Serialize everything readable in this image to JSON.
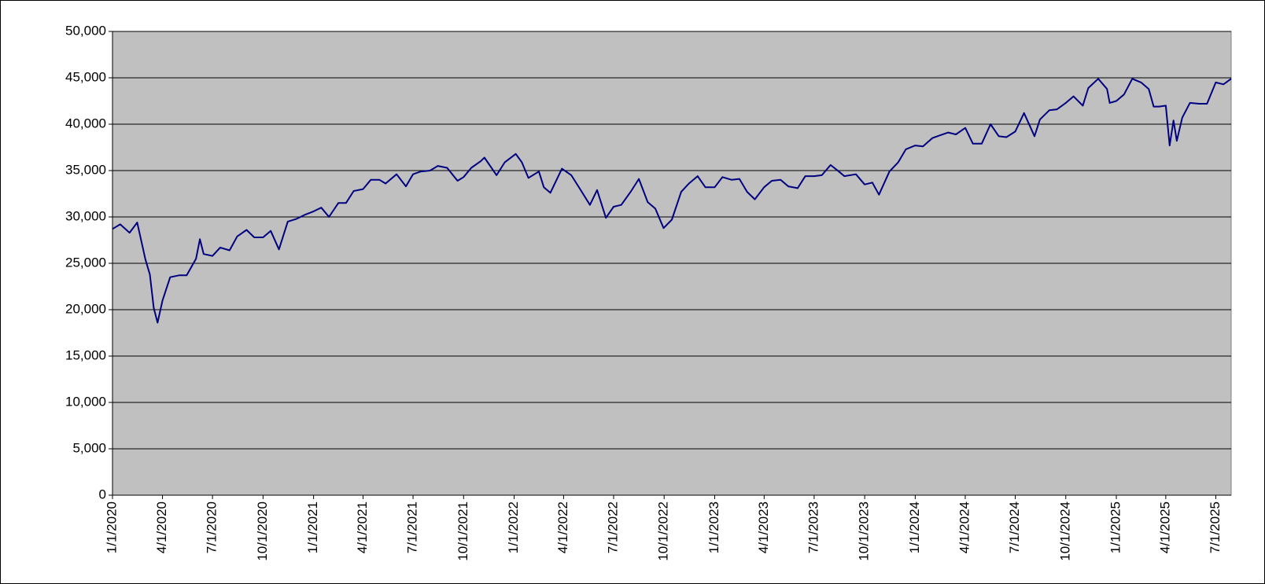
{
  "chart_data": {
    "type": "line",
    "x": [
      "1/1/2020",
      "1/15/2020",
      "2/1/2020",
      "2/15/2020",
      "3/1/2020",
      "3/9/2020",
      "3/16/2020",
      "3/23/2020",
      "4/1/2020",
      "4/15/2020",
      "5/1/2020",
      "5/15/2020",
      "6/1/2020",
      "6/8/2020",
      "6/15/2020",
      "7/1/2020",
      "7/15/2020",
      "8/1/2020",
      "8/15/2020",
      "9/1/2020",
      "9/15/2020",
      "10/1/2020",
      "10/15/2020",
      "10/30/2020",
      "11/15/2020",
      "12/1/2020",
      "12/15/2020",
      "1/1/2021",
      "1/15/2021",
      "1/29/2021",
      "2/15/2021",
      "3/1/2021",
      "3/15/2021",
      "4/1/2021",
      "4/15/2021",
      "5/1/2021",
      "5/12/2021",
      "6/1/2021",
      "6/18/2021",
      "7/1/2021",
      "7/15/2021",
      "8/1/2021",
      "8/15/2021",
      "9/1/2021",
      "9/20/2021",
      "10/1/2021",
      "10/15/2021",
      "11/1/2021",
      "11/8/2021",
      "11/30/2021",
      "12/15/2021",
      "1/4/2022",
      "1/15/2022",
      "1/27/2022",
      "2/15/2022",
      "2/24/2022",
      "3/8/2022",
      "3/29/2022",
      "4/15/2022",
      "5/1/2022",
      "5/19/2022",
      "6/1/2022",
      "6/17/2022",
      "7/1/2022",
      "7/15/2022",
      "8/1/2022",
      "8/16/2022",
      "9/1/2022",
      "9/15/2022",
      "9/30/2022",
      "10/15/2022",
      "11/1/2022",
      "11/15/2022",
      "12/1/2022",
      "12/15/2022",
      "1/1/2023",
      "1/15/2023",
      "2/1/2023",
      "2/15/2023",
      "3/1/2023",
      "3/15/2023",
      "4/1/2023",
      "4/15/2023",
      "5/1/2023",
      "5/15/2023",
      "6/1/2023",
      "6/15/2023",
      "7/1/2023",
      "7/15/2023",
      "7/31/2023",
      "8/15/2023",
      "8/25/2023",
      "9/15/2023",
      "10/1/2023",
      "10/15/2023",
      "10/27/2023",
      "11/15/2023",
      "12/1/2023",
      "12/15/2023",
      "1/1/2024",
      "1/15/2024",
      "2/1/2024",
      "2/15/2024",
      "3/1/2024",
      "3/15/2024",
      "4/1/2024",
      "4/15/2024",
      "5/1/2024",
      "5/17/2024",
      "6/1/2024",
      "6/15/2024",
      "7/1/2024",
      "7/17/2024",
      "8/5/2024",
      "8/15/2024",
      "9/1/2024",
      "9/15/2024",
      "10/1/2024",
      "10/15/2024",
      "11/1/2024",
      "11/11/2024",
      "11/29/2024",
      "12/15/2024",
      "12/20/2024",
      "1/1/2025",
      "1/15/2025",
      "1/30/2025",
      "2/15/2025",
      "3/1/2025",
      "3/10/2025",
      "3/20/2025",
      "4/1/2025",
      "4/8/2025",
      "4/15/2025",
      "4/21/2025",
      "5/1/2025",
      "5/15/2025",
      "6/1/2025",
      "6/15/2025",
      "7/1/2025",
      "7/15/2025",
      "7/29/2025"
    ],
    "series": [
      {
        "color": "#000080",
        "values": [
          28700,
          29200,
          28300,
          29400,
          25400,
          23800,
          20200,
          18600,
          21000,
          23500,
          23700,
          23700,
          25500,
          27600,
          26000,
          25800,
          26700,
          26400,
          27900,
          28600,
          27800,
          27800,
          28500,
          26500,
          29500,
          29800,
          30200,
          30600,
          31000,
          30000,
          31500,
          31500,
          32800,
          33000,
          34000,
          34000,
          33600,
          34600,
          33300,
          34600,
          34900,
          35000,
          35500,
          35300,
          33900,
          34300,
          35300,
          36000,
          36400,
          34500,
          35900,
          36800,
          35900,
          34200,
          34900,
          33200,
          32600,
          35200,
          34500,
          33000,
          31300,
          32900,
          29900,
          31100,
          31300,
          32700,
          34100,
          31600,
          30900,
          28800,
          29700,
          32700,
          33600,
          34400,
          33200,
          33200,
          34300,
          34000,
          34100,
          32700,
          31900,
          33200,
          33900,
          34000,
          33300,
          33100,
          34400,
          34400,
          34500,
          35600,
          34900,
          34400,
          34600,
          33500,
          33700,
          32400,
          34900,
          35900,
          37300,
          37700,
          37600,
          38500,
          38800,
          39100,
          38900,
          39600,
          37900,
          37900,
          40000,
          38700,
          38600,
          39200,
          41200,
          38700,
          40500,
          41500,
          41600,
          42300,
          43000,
          42000,
          43900,
          44900,
          43800,
          42300,
          42500,
          43200,
          44900,
          44500,
          43800,
          41900,
          41900,
          42000,
          37700,
          40400,
          38200,
          40700,
          42300,
          42200,
          42200,
          44500,
          44300,
          44900
        ]
      }
    ],
    "xlim": [
      "1/1/2020",
      "7/29/2025"
    ],
    "xticks": [
      "1/1/2020",
      "4/1/2020",
      "7/1/2020",
      "10/1/2020",
      "1/1/2021",
      "4/1/2021",
      "7/1/2021",
      "10/1/2021",
      "1/1/2022",
      "4/1/2022",
      "7/1/2022",
      "10/1/2022",
      "1/1/2023",
      "4/1/2023",
      "7/1/2023",
      "10/1/2023",
      "1/1/2024",
      "4/1/2024",
      "7/1/2024",
      "10/1/2024",
      "1/1/2025",
      "4/1/2025",
      "7/1/2025"
    ],
    "ylim": [
      0,
      50000
    ],
    "yticks": [
      0,
      {
        "value": 5000,
        "label": "5,000"
      },
      {
        "value": 10000,
        "label": "10,000"
      },
      {
        "value": 15000,
        "label": "15,000"
      },
      {
        "value": 20000,
        "label": "20,000"
      },
      {
        "value": 25000,
        "label": "25,000"
      },
      {
        "value": 30000,
        "label": "30,000"
      },
      {
        "value": 35000,
        "label": "35,000"
      },
      {
        "value": 40000,
        "label": "40,000"
      },
      {
        "value": 45000,
        "label": "45,000"
      },
      {
        "value": 50000,
        "label": "50,000"
      }
    ],
    "grid": true,
    "plot_background": "#c0c0c0"
  }
}
